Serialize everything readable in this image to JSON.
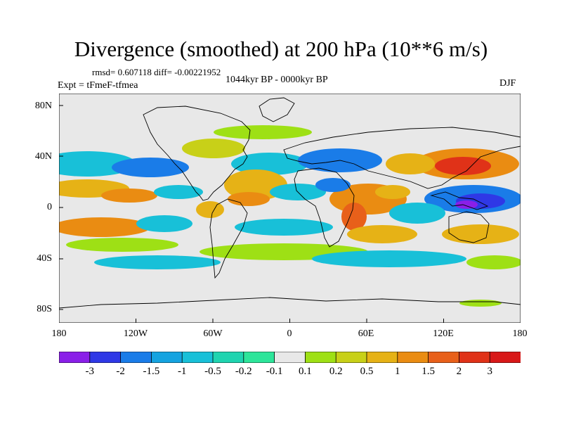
{
  "title": "Divergence (smoothed) at 200 hPa (10**6 m/s)",
  "stats": "rmsd= 0.607118 diff= -0.00221952",
  "period": "1044kyr BP - 0000kyr BP",
  "experiment": "Expt = tFmeF-tfmea",
  "season": "DJF",
  "y_ticks": [
    "80N",
    "40N",
    "0",
    "40S",
    "80S"
  ],
  "x_ticks": [
    "180",
    "120W",
    "60W",
    "0",
    "60E",
    "120E",
    "180"
  ],
  "colorbar": {
    "labels": [
      "-3",
      "-2",
      "-1.5",
      "-1",
      "-0.5",
      "-0.2",
      "-0.1",
      "0.1",
      "0.2",
      "0.5",
      "1",
      "1.5",
      "2",
      "3"
    ],
    "colors": [
      "#8a1fe8",
      "#2f38e6",
      "#1a7ce8",
      "#15a3e0",
      "#18c0d8",
      "#1fd4b0",
      "#2de59a",
      "#e8e8e8",
      "#9ee015",
      "#c8d018",
      "#e6b216",
      "#ea8c12",
      "#e8601a",
      "#e03218",
      "#d81818"
    ]
  },
  "colors": {
    "background": "#e8e8e8",
    "coastline": "#000000"
  }
}
